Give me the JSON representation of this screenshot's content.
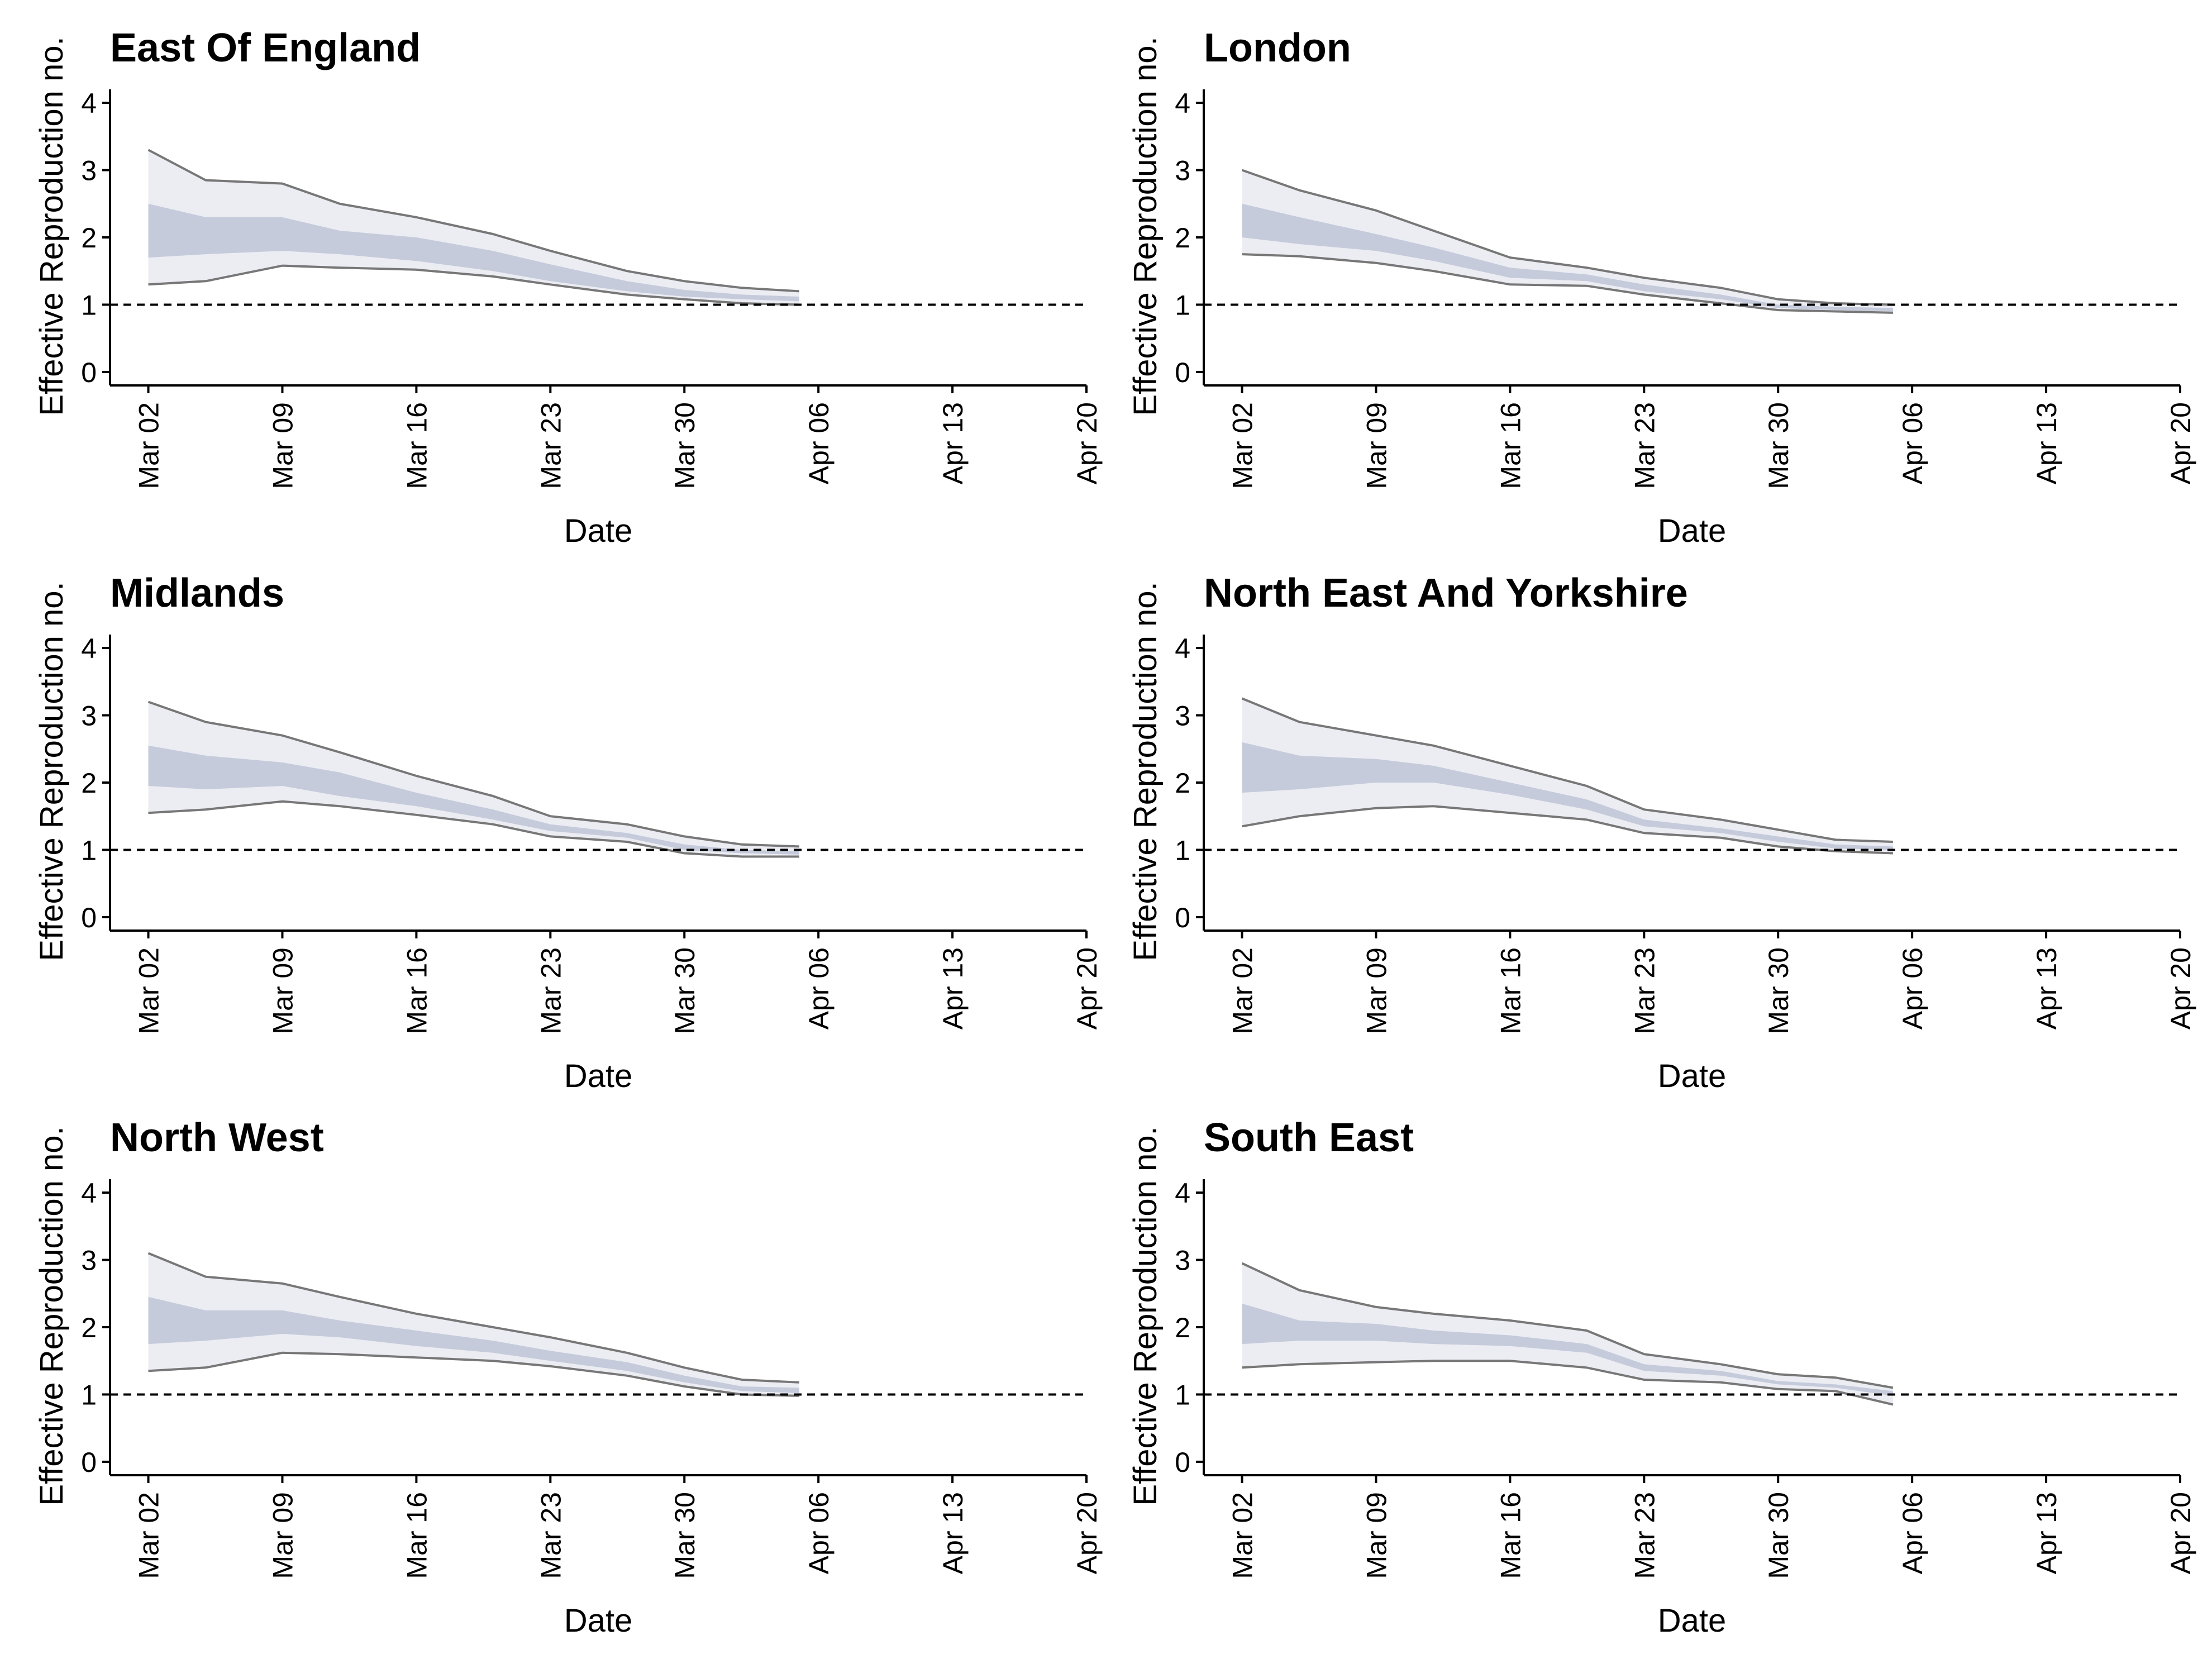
{
  "chart_data": [
    {
      "type": "area",
      "title": "East Of England",
      "xlabel": "Date",
      "ylabel": "Effective Reproduction no.",
      "xlim": [
        "2020-02-29",
        "2020-04-20"
      ],
      "ylim": [
        -0.2,
        4.2
      ],
      "xticks": [
        "Mar 02",
        "Mar 09",
        "Mar 16",
        "Mar 23",
        "Mar 30",
        "Apr 06",
        "Apr 13",
        "Apr 20"
      ],
      "yticks": [
        0,
        1,
        2,
        3,
        4
      ],
      "reference_line": 1,
      "grid": false,
      "colors": {
        "outer_band": "#ecedf3",
        "inner_band": "#c5cbdb",
        "bound_line": "#777777",
        "reference": "#000000"
      },
      "x": [
        "2020-03-02",
        "2020-03-05",
        "2020-03-09",
        "2020-03-12",
        "2020-03-16",
        "2020-03-20",
        "2020-03-23",
        "2020-03-27",
        "2020-03-30",
        "2020-04-02",
        "2020-04-05"
      ],
      "upper_90": [
        3.3,
        2.85,
        2.8,
        2.5,
        2.3,
        2.05,
        1.8,
        1.5,
        1.35,
        1.25,
        1.2
      ],
      "upper_50": [
        2.5,
        2.3,
        2.3,
        2.1,
        2.0,
        1.8,
        1.6,
        1.35,
        1.22,
        1.15,
        1.12
      ],
      "lower_50": [
        1.7,
        1.75,
        1.8,
        1.75,
        1.65,
        1.5,
        1.35,
        1.2,
        1.12,
        1.08,
        1.05
      ],
      "lower_90": [
        1.3,
        1.35,
        1.58,
        1.55,
        1.52,
        1.42,
        1.3,
        1.15,
        1.08,
        1.02,
        1.0
      ]
    },
    {
      "type": "area",
      "title": "London",
      "xlabel": "Date",
      "ylabel": "Effective Reproduction no.",
      "xlim": [
        "2020-02-29",
        "2020-04-20"
      ],
      "ylim": [
        -0.2,
        4.2
      ],
      "xticks": [
        "Mar 02",
        "Mar 09",
        "Mar 16",
        "Mar 23",
        "Mar 30",
        "Apr 06",
        "Apr 13",
        "Apr 20"
      ],
      "yticks": [
        0,
        1,
        2,
        3,
        4
      ],
      "reference_line": 1,
      "grid": false,
      "colors": {
        "outer_band": "#ecedf3",
        "inner_band": "#c5cbdb",
        "bound_line": "#777777",
        "reference": "#000000"
      },
      "x": [
        "2020-03-02",
        "2020-03-05",
        "2020-03-09",
        "2020-03-12",
        "2020-03-16",
        "2020-03-20",
        "2020-03-23",
        "2020-03-27",
        "2020-03-30",
        "2020-04-02",
        "2020-04-05"
      ],
      "upper_90": [
        3.0,
        2.7,
        2.4,
        2.1,
        1.7,
        1.55,
        1.4,
        1.25,
        1.08,
        1.02,
        1.0
      ],
      "upper_50": [
        2.5,
        2.3,
        2.05,
        1.85,
        1.55,
        1.45,
        1.3,
        1.15,
        1.0,
        0.97,
        0.95
      ],
      "lower_50": [
        2.0,
        1.9,
        1.8,
        1.65,
        1.4,
        1.35,
        1.2,
        1.08,
        0.95,
        0.92,
        0.9
      ],
      "lower_90": [
        1.75,
        1.72,
        1.62,
        1.5,
        1.3,
        1.28,
        1.15,
        1.02,
        0.92,
        0.9,
        0.88
      ]
    },
    {
      "type": "area",
      "title": "Midlands",
      "xlabel": "Date",
      "ylabel": "Effective Reproduction no.",
      "xlim": [
        "2020-02-29",
        "2020-04-20"
      ],
      "ylim": [
        -0.2,
        4.2
      ],
      "xticks": [
        "Mar 02",
        "Mar 09",
        "Mar 16",
        "Mar 23",
        "Mar 30",
        "Apr 06",
        "Apr 13",
        "Apr 20"
      ],
      "yticks": [
        0,
        1,
        2,
        3,
        4
      ],
      "reference_line": 1,
      "grid": false,
      "colors": {
        "outer_band": "#ecedf3",
        "inner_band": "#c5cbdb",
        "bound_line": "#777777",
        "reference": "#000000"
      },
      "x": [
        "2020-03-02",
        "2020-03-05",
        "2020-03-09",
        "2020-03-12",
        "2020-03-16",
        "2020-03-20",
        "2020-03-23",
        "2020-03-27",
        "2020-03-30",
        "2020-04-02",
        "2020-04-05"
      ],
      "upper_90": [
        3.2,
        2.9,
        2.7,
        2.45,
        2.1,
        1.8,
        1.5,
        1.38,
        1.2,
        1.08,
        1.05
      ],
      "upper_50": [
        2.55,
        2.4,
        2.3,
        2.15,
        1.85,
        1.6,
        1.38,
        1.25,
        1.08,
        1.0,
        0.98
      ],
      "lower_50": [
        1.95,
        1.9,
        1.95,
        1.8,
        1.65,
        1.45,
        1.28,
        1.18,
        1.0,
        0.95,
        0.93
      ],
      "lower_90": [
        1.55,
        1.6,
        1.72,
        1.65,
        1.52,
        1.38,
        1.2,
        1.12,
        0.95,
        0.9,
        0.9
      ]
    },
    {
      "type": "area",
      "title": "North East And Yorkshire",
      "xlabel": "Date",
      "ylabel": "Effective Reproduction no.",
      "xlim": [
        "2020-02-29",
        "2020-04-20"
      ],
      "ylim": [
        -0.2,
        4.2
      ],
      "xticks": [
        "Mar 02",
        "Mar 09",
        "Mar 16",
        "Mar 23",
        "Mar 30",
        "Apr 06",
        "Apr 13",
        "Apr 20"
      ],
      "yticks": [
        0,
        1,
        2,
        3,
        4
      ],
      "reference_line": 1,
      "grid": false,
      "colors": {
        "outer_band": "#ecedf3",
        "inner_band": "#c5cbdb",
        "bound_line": "#777777",
        "reference": "#000000"
      },
      "x": [
        "2020-03-02",
        "2020-03-05",
        "2020-03-09",
        "2020-03-12",
        "2020-03-16",
        "2020-03-20",
        "2020-03-23",
        "2020-03-27",
        "2020-03-30",
        "2020-04-02",
        "2020-04-05"
      ],
      "upper_90": [
        3.25,
        2.9,
        2.7,
        2.55,
        2.25,
        1.95,
        1.6,
        1.45,
        1.3,
        1.15,
        1.12
      ],
      "upper_50": [
        2.6,
        2.4,
        2.35,
        2.25,
        2.0,
        1.75,
        1.45,
        1.32,
        1.2,
        1.08,
        1.05
      ],
      "lower_50": [
        1.85,
        1.9,
        2.0,
        2.0,
        1.82,
        1.6,
        1.35,
        1.25,
        1.12,
        1.02,
        1.0
      ],
      "lower_90": [
        1.35,
        1.5,
        1.62,
        1.65,
        1.55,
        1.45,
        1.25,
        1.18,
        1.05,
        0.98,
        0.95
      ]
    },
    {
      "type": "area",
      "title": "North West",
      "xlabel": "Date",
      "ylabel": "Effective Reproduction no.",
      "xlim": [
        "2020-02-29",
        "2020-04-20"
      ],
      "ylim": [
        -0.2,
        4.2
      ],
      "xticks": [
        "Mar 02",
        "Mar 09",
        "Mar 16",
        "Mar 23",
        "Mar 30",
        "Apr 06",
        "Apr 13",
        "Apr 20"
      ],
      "yticks": [
        0,
        1,
        2,
        3,
        4
      ],
      "reference_line": 1,
      "grid": false,
      "colors": {
        "outer_band": "#ecedf3",
        "inner_band": "#c5cbdb",
        "bound_line": "#777777",
        "reference": "#000000"
      },
      "x": [
        "2020-03-02",
        "2020-03-05",
        "2020-03-09",
        "2020-03-12",
        "2020-03-16",
        "2020-03-20",
        "2020-03-23",
        "2020-03-27",
        "2020-03-30",
        "2020-04-02",
        "2020-04-05"
      ],
      "upper_90": [
        3.1,
        2.75,
        2.65,
        2.45,
        2.2,
        2.0,
        1.85,
        1.62,
        1.4,
        1.22,
        1.18
      ],
      "upper_50": [
        2.45,
        2.25,
        2.25,
        2.1,
        1.95,
        1.8,
        1.65,
        1.48,
        1.28,
        1.12,
        1.1
      ],
      "lower_50": [
        1.75,
        1.8,
        1.9,
        1.85,
        1.72,
        1.62,
        1.5,
        1.35,
        1.18,
        1.05,
        1.02
      ],
      "lower_90": [
        1.35,
        1.4,
        1.62,
        1.6,
        1.55,
        1.5,
        1.42,
        1.28,
        1.12,
        1.0,
        0.98
      ]
    },
    {
      "type": "area",
      "title": "South East",
      "xlabel": "Date",
      "ylabel": "Effective Reproduction no.",
      "xlim": [
        "2020-02-29",
        "2020-04-20"
      ],
      "ylim": [
        -0.2,
        4.2
      ],
      "xticks": [
        "Mar 02",
        "Mar 09",
        "Mar 16",
        "Mar 23",
        "Mar 30",
        "Apr 06",
        "Apr 13",
        "Apr 20"
      ],
      "yticks": [
        0,
        1,
        2,
        3,
        4
      ],
      "reference_line": 1,
      "grid": false,
      "colors": {
        "outer_band": "#ecedf3",
        "inner_band": "#c5cbdb",
        "bound_line": "#777777",
        "reference": "#000000"
      },
      "x": [
        "2020-03-02",
        "2020-03-05",
        "2020-03-09",
        "2020-03-12",
        "2020-03-16",
        "2020-03-20",
        "2020-03-23",
        "2020-03-27",
        "2020-03-30",
        "2020-04-02",
        "2020-04-05"
      ],
      "upper_90": [
        2.95,
        2.55,
        2.3,
        2.2,
        2.1,
        1.95,
        1.6,
        1.45,
        1.3,
        1.25,
        1.1
      ],
      "upper_50": [
        2.35,
        2.1,
        2.05,
        1.95,
        1.88,
        1.75,
        1.45,
        1.35,
        1.2,
        1.15,
        1.05
      ],
      "lower_50": [
        1.75,
        1.8,
        1.8,
        1.75,
        1.72,
        1.62,
        1.35,
        1.28,
        1.15,
        1.1,
        0.98
      ],
      "lower_90": [
        1.4,
        1.45,
        1.48,
        1.5,
        1.5,
        1.4,
        1.22,
        1.18,
        1.08,
        1.05,
        0.85
      ]
    }
  ]
}
